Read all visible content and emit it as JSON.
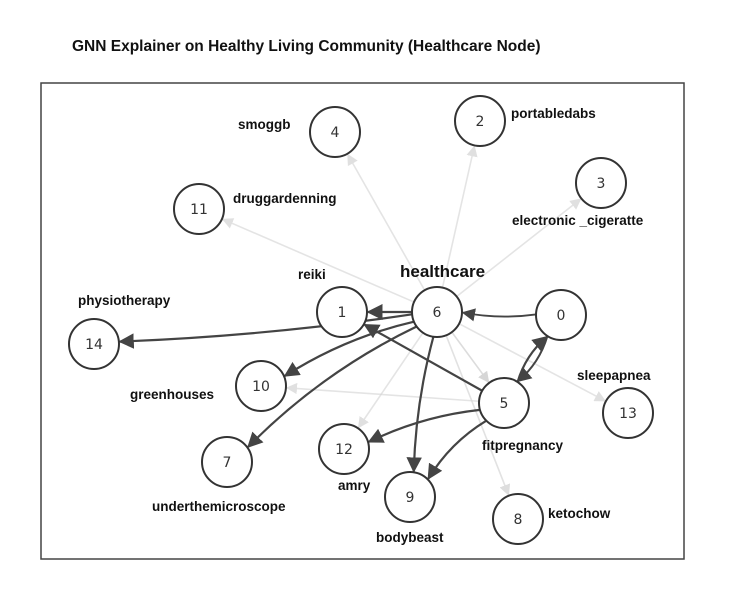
{
  "title": "GNN Explainer on Healthy Living Community (Healthcare Node)",
  "colors": {
    "strong_edge": "#444444",
    "weak_edge": "#d6d6d6",
    "node_stroke": "#333333"
  },
  "nodes": [
    {
      "id": "0",
      "label": ""
    },
    {
      "id": "1",
      "label": "reiki"
    },
    {
      "id": "2",
      "label": "portabledabs"
    },
    {
      "id": "3",
      "label": "electronic _cigeratte"
    },
    {
      "id": "4",
      "label": "smoggb"
    },
    {
      "id": "5",
      "label": "fitpregnancy"
    },
    {
      "id": "6",
      "label": "healthcare"
    },
    {
      "id": "7",
      "label": "underthemicroscope"
    },
    {
      "id": "8",
      "label": "ketochow"
    },
    {
      "id": "9",
      "label": "bodybeast"
    },
    {
      "id": "10",
      "label": "greenhouses"
    },
    {
      "id": "11",
      "label": "druggardenning"
    },
    {
      "id": "12",
      "label": "amry"
    },
    {
      "id": "13",
      "label": "sleepapnea"
    },
    {
      "id": "14",
      "label": "physiotherapy"
    }
  ],
  "edges": [
    {
      "from": "6",
      "to": "4",
      "weight": 0.1
    },
    {
      "from": "6",
      "to": "2",
      "weight": 0.1
    },
    {
      "from": "6",
      "to": "3",
      "weight": 0.1
    },
    {
      "from": "6",
      "to": "11",
      "weight": 0.1
    },
    {
      "from": "6",
      "to": "13",
      "weight": 0.1
    },
    {
      "from": "6",
      "to": "8",
      "weight": 0.15
    },
    {
      "from": "6",
      "to": "12",
      "weight": 0.1
    },
    {
      "from": "5",
      "to": "10",
      "weight": 0.1
    },
    {
      "from": "6",
      "to": "5",
      "weight": 0.3
    },
    {
      "from": "0",
      "to": "6",
      "weight": 0.55
    },
    {
      "from": "6",
      "to": "1",
      "weight": 1.0
    },
    {
      "from": "6",
      "to": "14",
      "weight": 0.9
    },
    {
      "from": "6",
      "to": "10",
      "weight": 0.9
    },
    {
      "from": "6",
      "to": "7",
      "weight": 0.9
    },
    {
      "from": "6",
      "to": "9",
      "weight": 0.9
    },
    {
      "from": "5",
      "to": "1",
      "weight": 0.9
    },
    {
      "from": "5",
      "to": "0",
      "weight": 0.9
    },
    {
      "from": "0",
      "to": "5",
      "weight": 0.7
    },
    {
      "from": "5",
      "to": "12",
      "weight": 0.9
    },
    {
      "from": "5",
      "to": "9",
      "weight": 0.9
    }
  ]
}
